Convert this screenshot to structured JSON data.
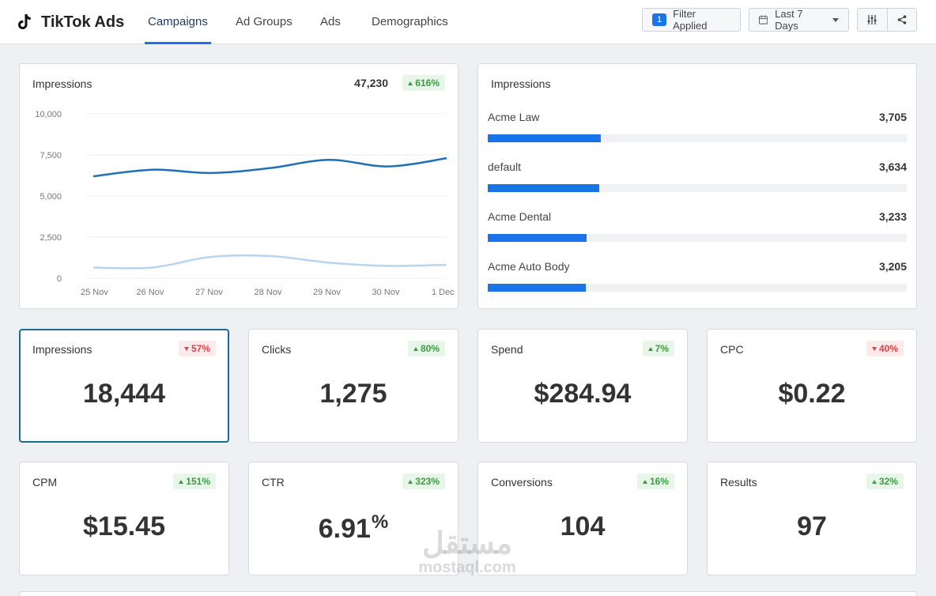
{
  "header": {
    "brand": "TikTok Ads",
    "tabs": [
      {
        "label": "Campaigns",
        "active": true
      },
      {
        "label": "Ad Groups",
        "active": false
      },
      {
        "label": "Ads",
        "active": false
      },
      {
        "label": "Demographics",
        "active": false
      }
    ],
    "filter": {
      "count": "1",
      "label": "Filter Applied"
    },
    "date_range": "Last 7 Days",
    "icons": [
      "sliders-icon",
      "share-icon"
    ],
    "accent": "#1a73e8"
  },
  "line_card": {
    "title": "Impressions",
    "total": "47,230",
    "change": "616%",
    "direction": "up"
  },
  "chart_data": {
    "type": "line",
    "x": [
      "25 Nov",
      "26 Nov",
      "27 Nov",
      "28 Nov",
      "29 Nov",
      "30 Nov",
      "1 Dec"
    ],
    "y_ticks": [
      "10,000",
      "7,500",
      "5,000",
      "2,500",
      "0"
    ],
    "ylim": [
      0,
      10000
    ],
    "grid": true,
    "series": [
      {
        "color": "#1f6fb8",
        "values": [
          6200,
          6600,
          6400,
          6700,
          7200,
          6800,
          7300
        ]
      },
      {
        "color": "#b8d5ef",
        "values": [
          650,
          650,
          1300,
          1350,
          950,
          750,
          820
        ]
      }
    ]
  },
  "bar_card": {
    "title": "Impressions",
    "items": [
      {
        "label": "Acme Law",
        "value": "3,705",
        "amount": 3705
      },
      {
        "label": "default",
        "value": "3,634",
        "amount": 3634
      },
      {
        "label": "Acme Dental",
        "value": "3,233",
        "amount": 3233
      },
      {
        "label": "Acme Auto Body",
        "value": "3,205",
        "amount": 3205
      }
    ],
    "scale_max": 13700
  },
  "kpis": [
    {
      "label": "Impressions",
      "value": "18,444",
      "unit": "",
      "change": "57%",
      "direction": "down",
      "selected": true
    },
    {
      "label": "Clicks",
      "value": "1,275",
      "unit": "",
      "change": "80%",
      "direction": "up"
    },
    {
      "label": "Spend",
      "value": "$284.94",
      "unit": "",
      "change": "7%",
      "direction": "up"
    },
    {
      "label": "CPC",
      "value": "$0.22",
      "unit": "",
      "change": "40%",
      "direction": "down"
    },
    {
      "label": "CPM",
      "value": "$15.45",
      "unit": "",
      "change": "151%",
      "direction": "up"
    },
    {
      "label": "CTR",
      "value": "6.91",
      "unit": "%",
      "change": "323%",
      "direction": "up"
    },
    {
      "label": "Conversions",
      "value": "104",
      "unit": "",
      "change": "16%",
      "direction": "up"
    },
    {
      "label": "Results",
      "value": "97",
      "unit": "",
      "change": "32%",
      "direction": "up"
    }
  ],
  "watermark": {
    "arabic": "مستقل",
    "latin": "mostaql.com"
  }
}
